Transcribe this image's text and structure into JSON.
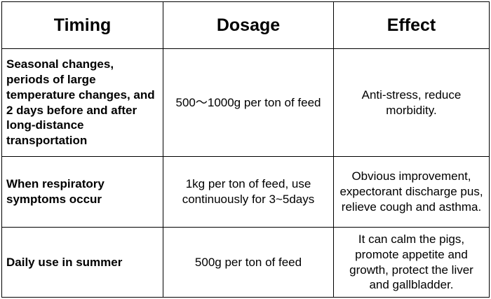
{
  "table": {
    "headers": {
      "timing": "Timing",
      "dosage": "Dosage",
      "effect": "Effect"
    },
    "rows": [
      {
        "timing": "Seasonal changes, periods of large temperature changes, and 2 days before and after long-distance transportation",
        "dosage": "500～1000g per ton of feed",
        "effect": "Anti-stress, reduce morbidity."
      },
      {
        "timing": "When respiratory symptoms occur",
        "dosage": "1kg per ton of feed, use continuously for 3~5days",
        "effect": "Obvious improvement, expectorant discharge pus, relieve cough and asthma."
      },
      {
        "timing": "Daily use in summer",
        "dosage": "500g per ton of feed",
        "effect": "It can calm the pigs, promote appetite and growth, protect the liver and gallbladder."
      }
    ]
  }
}
